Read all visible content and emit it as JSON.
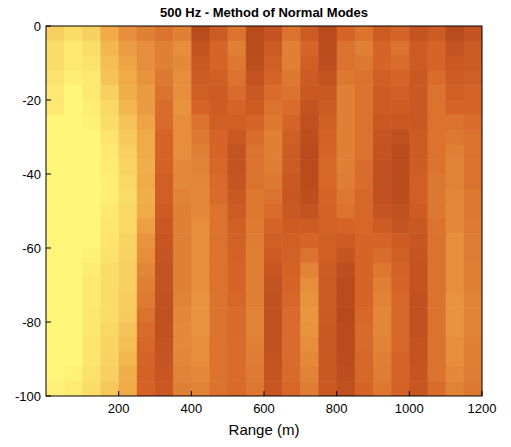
{
  "chart_data": {
    "type": "heatmap",
    "title": "500 Hz - Method of Normal Modes",
    "x_label": "Range (m)",
    "xlim": [
      0,
      1200
    ],
    "ylim": [
      -100,
      0
    ],
    "xticks": [
      200,
      400,
      600,
      800,
      1000,
      1200
    ],
    "yticks": [
      0,
      -20,
      -40,
      -60,
      -80,
      -100
    ],
    "zlim": [
      0,
      1
    ],
    "x": [
      25,
      75,
      125,
      175,
      225,
      275,
      325,
      375,
      425,
      475,
      525,
      575,
      625,
      675,
      725,
      775,
      825,
      875,
      925,
      975,
      1025,
      1075,
      1125,
      1175
    ],
    "y": [
      -2,
      -6,
      -10,
      -14,
      -18,
      -22,
      -26,
      -30,
      -34,
      -38,
      -42,
      -46,
      -50,
      -54,
      -58,
      -62,
      -66,
      -70,
      -74,
      -78,
      -82,
      -86,
      -90,
      -94,
      -98
    ],
    "z": [
      [
        0.85,
        0.9,
        0.85,
        0.7,
        0.6,
        0.55,
        0.5,
        0.55,
        0.3,
        0.4,
        0.5,
        0.3,
        0.35,
        0.5,
        0.4,
        0.3,
        0.45,
        0.5,
        0.4,
        0.45,
        0.35,
        0.4,
        0.3,
        0.35
      ],
      [
        0.9,
        0.95,
        0.9,
        0.75,
        0.65,
        0.6,
        0.55,
        0.6,
        0.35,
        0.45,
        0.55,
        0.3,
        0.4,
        0.55,
        0.45,
        0.3,
        0.5,
        0.55,
        0.45,
        0.5,
        0.4,
        0.45,
        0.35,
        0.4
      ],
      [
        0.9,
        0.95,
        0.92,
        0.78,
        0.68,
        0.6,
        0.55,
        0.58,
        0.38,
        0.45,
        0.52,
        0.32,
        0.42,
        0.55,
        0.42,
        0.32,
        0.5,
        0.52,
        0.45,
        0.48,
        0.4,
        0.45,
        0.38,
        0.4
      ],
      [
        0.92,
        0.97,
        0.95,
        0.8,
        0.7,
        0.62,
        0.52,
        0.6,
        0.4,
        0.42,
        0.5,
        0.35,
        0.45,
        0.52,
        0.4,
        0.35,
        0.52,
        0.5,
        0.42,
        0.45,
        0.38,
        0.48,
        0.4,
        0.42
      ],
      [
        0.95,
        1,
        0.95,
        0.85,
        0.72,
        0.65,
        0.5,
        0.6,
        0.42,
        0.4,
        0.48,
        0.38,
        0.48,
        0.5,
        0.38,
        0.38,
        0.55,
        0.5,
        0.4,
        0.42,
        0.38,
        0.5,
        0.42,
        0.45
      ],
      [
        0.95,
        1,
        0.97,
        0.88,
        0.75,
        0.65,
        0.48,
        0.62,
        0.45,
        0.4,
        0.45,
        0.4,
        0.5,
        0.48,
        0.35,
        0.4,
        0.55,
        0.5,
        0.4,
        0.4,
        0.38,
        0.5,
        0.45,
        0.45
      ],
      [
        1,
        1,
        0.98,
        0.9,
        0.8,
        0.68,
        0.47,
        0.6,
        0.5,
        0.42,
        0.42,
        0.45,
        0.52,
        0.45,
        0.33,
        0.42,
        0.55,
        0.5,
        0.38,
        0.38,
        0.38,
        0.5,
        0.5,
        0.48
      ],
      [
        1,
        1,
        1,
        0.93,
        0.82,
        0.7,
        0.45,
        0.6,
        0.52,
        0.45,
        0.38,
        0.48,
        0.55,
        0.42,
        0.32,
        0.44,
        0.55,
        0.5,
        0.36,
        0.33,
        0.4,
        0.5,
        0.52,
        0.5
      ],
      [
        1,
        1,
        1,
        0.95,
        0.85,
        0.7,
        0.45,
        0.6,
        0.55,
        0.45,
        0.35,
        0.5,
        0.55,
        0.4,
        0.3,
        0.45,
        0.55,
        0.5,
        0.35,
        0.3,
        0.4,
        0.5,
        0.55,
        0.5
      ],
      [
        1,
        1,
        1,
        0.96,
        0.87,
        0.72,
        0.44,
        0.58,
        0.56,
        0.46,
        0.35,
        0.5,
        0.54,
        0.4,
        0.3,
        0.46,
        0.55,
        0.48,
        0.34,
        0.3,
        0.41,
        0.5,
        0.56,
        0.5
      ],
      [
        1,
        1,
        1,
        0.97,
        0.88,
        0.7,
        0.42,
        0.58,
        0.57,
        0.47,
        0.36,
        0.5,
        0.52,
        0.38,
        0.3,
        0.46,
        0.54,
        0.48,
        0.33,
        0.3,
        0.42,
        0.52,
        0.56,
        0.5
      ],
      [
        1,
        1,
        1,
        0.97,
        0.9,
        0.72,
        0.42,
        0.56,
        0.58,
        0.48,
        0.38,
        0.52,
        0.5,
        0.37,
        0.32,
        0.45,
        0.52,
        0.46,
        0.34,
        0.31,
        0.42,
        0.52,
        0.57,
        0.52
      ],
      [
        1,
        1,
        1,
        0.95,
        0.88,
        0.7,
        0.4,
        0.55,
        0.58,
        0.5,
        0.4,
        0.52,
        0.48,
        0.38,
        0.35,
        0.44,
        0.5,
        0.46,
        0.36,
        0.33,
        0.4,
        0.52,
        0.58,
        0.52
      ],
      [
        1,
        1,
        1,
        0.94,
        0.88,
        0.66,
        0.38,
        0.55,
        0.6,
        0.5,
        0.42,
        0.53,
        0.45,
        0.4,
        0.4,
        0.43,
        0.45,
        0.46,
        0.4,
        0.36,
        0.38,
        0.5,
        0.58,
        0.53
      ],
      [
        1,
        1,
        1,
        0.93,
        0.87,
        0.62,
        0.37,
        0.55,
        0.6,
        0.5,
        0.43,
        0.54,
        0.42,
        0.42,
        0.45,
        0.42,
        0.4,
        0.45,
        0.45,
        0.4,
        0.37,
        0.5,
        0.6,
        0.54
      ],
      [
        1,
        1,
        0.98,
        0.92,
        0.86,
        0.6,
        0.36,
        0.55,
        0.6,
        0.5,
        0.44,
        0.55,
        0.4,
        0.43,
        0.5,
        0.42,
        0.36,
        0.45,
        0.48,
        0.42,
        0.36,
        0.5,
        0.6,
        0.54
      ],
      [
        1,
        1,
        0.96,
        0.9,
        0.85,
        0.57,
        0.35,
        0.55,
        0.6,
        0.5,
        0.45,
        0.55,
        0.37,
        0.44,
        0.56,
        0.41,
        0.32,
        0.45,
        0.52,
        0.44,
        0.35,
        0.5,
        0.6,
        0.55
      ],
      [
        1,
        1,
        0.95,
        0.9,
        0.85,
        0.55,
        0.35,
        0.55,
        0.6,
        0.5,
        0.45,
        0.55,
        0.35,
        0.45,
        0.6,
        0.4,
        0.3,
        0.45,
        0.55,
        0.45,
        0.35,
        0.5,
        0.6,
        0.55
      ],
      [
        1,
        1,
        0.95,
        0.9,
        0.84,
        0.53,
        0.34,
        0.56,
        0.62,
        0.5,
        0.46,
        0.55,
        0.34,
        0.46,
        0.62,
        0.4,
        0.3,
        0.45,
        0.56,
        0.46,
        0.34,
        0.5,
        0.62,
        0.56
      ],
      [
        1,
        1,
        0.94,
        0.9,
        0.83,
        0.5,
        0.33,
        0.57,
        0.62,
        0.5,
        0.47,
        0.56,
        0.33,
        0.47,
        0.63,
        0.39,
        0.29,
        0.46,
        0.57,
        0.46,
        0.34,
        0.5,
        0.62,
        0.56
      ],
      [
        1,
        1,
        0.94,
        0.88,
        0.8,
        0.48,
        0.34,
        0.58,
        0.62,
        0.5,
        0.47,
        0.56,
        0.33,
        0.48,
        0.62,
        0.38,
        0.3,
        0.47,
        0.57,
        0.46,
        0.34,
        0.5,
        0.62,
        0.56
      ],
      [
        1,
        1,
        0.93,
        0.87,
        0.78,
        0.46,
        0.35,
        0.58,
        0.6,
        0.5,
        0.48,
        0.55,
        0.34,
        0.48,
        0.6,
        0.38,
        0.3,
        0.47,
        0.56,
        0.46,
        0.35,
        0.5,
        0.6,
        0.55
      ],
      [
        1,
        1,
        0.93,
        0.86,
        0.75,
        0.45,
        0.36,
        0.57,
        0.6,
        0.5,
        0.48,
        0.54,
        0.35,
        0.48,
        0.58,
        0.38,
        0.31,
        0.46,
        0.55,
        0.45,
        0.35,
        0.5,
        0.6,
        0.55
      ],
      [
        1,
        0.98,
        0.92,
        0.85,
        0.72,
        0.44,
        0.37,
        0.56,
        0.58,
        0.5,
        0.48,
        0.53,
        0.36,
        0.47,
        0.56,
        0.38,
        0.32,
        0.46,
        0.54,
        0.45,
        0.36,
        0.5,
        0.58,
        0.54
      ],
      [
        0.98,
        0.96,
        0.9,
        0.82,
        0.7,
        0.44,
        0.38,
        0.55,
        0.56,
        0.5,
        0.47,
        0.52,
        0.37,
        0.46,
        0.54,
        0.38,
        0.33,
        0.45,
        0.52,
        0.44,
        0.37,
        0.48,
        0.56,
        0.52
      ]
    ]
  }
}
